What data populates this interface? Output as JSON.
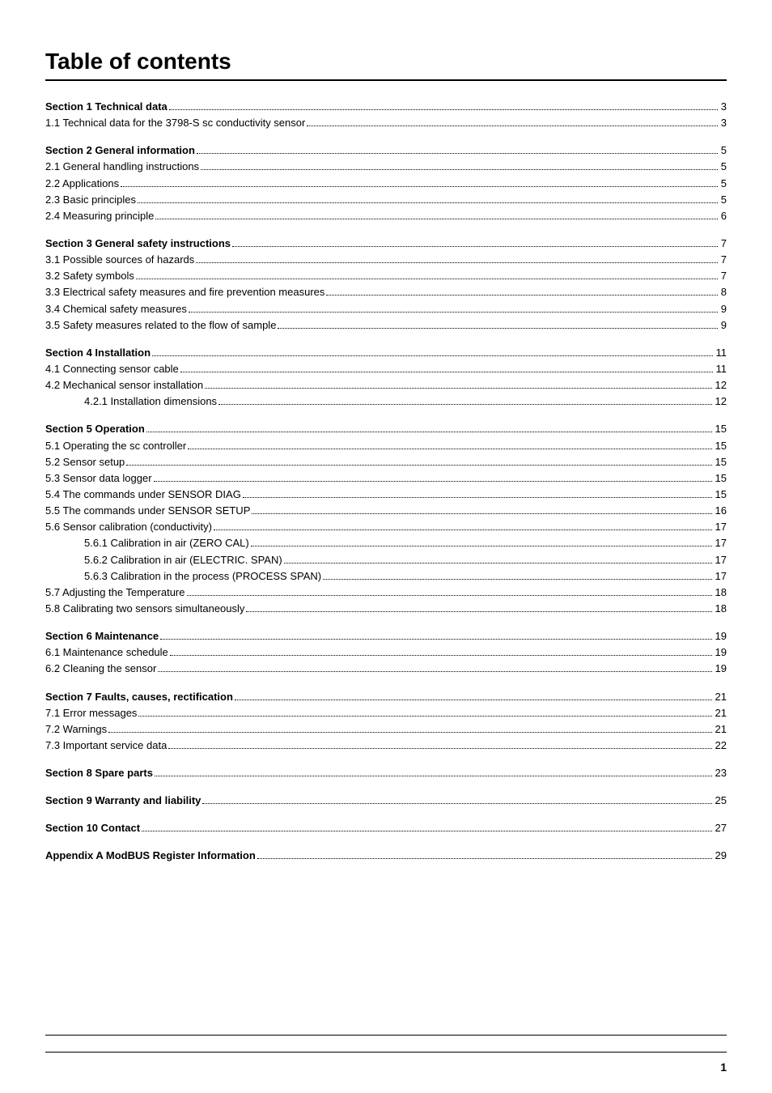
{
  "title": "Table of contents",
  "page_number": "1",
  "entries": [
    {
      "label": "Section 1 Technical data",
      "page": "3",
      "bold": true,
      "section": true,
      "indent": 0,
      "first": true
    },
    {
      "label": "1.1 Technical data for the 3798-S sc conductivity sensor ",
      "page": "3",
      "bold": false,
      "section": false,
      "indent": 0
    },
    {
      "label": "Section 2 General information ",
      "page": "5",
      "bold": true,
      "section": true,
      "indent": 0
    },
    {
      "label": "2.1 General handling instructions ",
      "page": "5",
      "bold": false,
      "section": false,
      "indent": 0
    },
    {
      "label": "2.2 Applications ",
      "page": "5",
      "bold": false,
      "section": false,
      "indent": 0
    },
    {
      "label": "2.3 Basic principles",
      "page": "5",
      "bold": false,
      "section": false,
      "indent": 0
    },
    {
      "label": "2.4 Measuring principle ",
      "page": "6",
      "bold": false,
      "section": false,
      "indent": 0
    },
    {
      "label": "Section 3 General safety instructions ",
      "page": "7",
      "bold": true,
      "section": true,
      "indent": 0
    },
    {
      "label": "3.1 Possible sources of hazards",
      "page": "7",
      "bold": false,
      "section": false,
      "indent": 0
    },
    {
      "label": "3.2 Safety symbols ",
      "page": "7",
      "bold": false,
      "section": false,
      "indent": 0
    },
    {
      "label": "3.3 Electrical safety measures and fire prevention measures ",
      "page": "8",
      "bold": false,
      "section": false,
      "indent": 0
    },
    {
      "label": "3.4 Chemical safety measures ",
      "page": "9",
      "bold": false,
      "section": false,
      "indent": 0
    },
    {
      "label": "3.5 Safety measures related to the flow of sample",
      "page": "9",
      "bold": false,
      "section": false,
      "indent": 0
    },
    {
      "label": "Section 4 Installation",
      "page": "11",
      "bold": true,
      "section": true,
      "indent": 0
    },
    {
      "label": "4.1 Connecting sensor cable ",
      "page": "11",
      "bold": false,
      "section": false,
      "indent": 0
    },
    {
      "label": "4.2 Mechanical sensor installation",
      "page": "12",
      "bold": false,
      "section": false,
      "indent": 0
    },
    {
      "label": "4.2.1 Installation dimensions ",
      "page": "12",
      "bold": false,
      "section": false,
      "indent": 2
    },
    {
      "label": "Section 5 Operation",
      "page": "15",
      "bold": true,
      "section": true,
      "indent": 0
    },
    {
      "label": "5.1 Operating the sc controller ",
      "page": "15",
      "bold": false,
      "section": false,
      "indent": 0
    },
    {
      "label": "5.2 Sensor setup ",
      "page": "15",
      "bold": false,
      "section": false,
      "indent": 0
    },
    {
      "label": "5.3 Sensor data logger ",
      "page": "15",
      "bold": false,
      "section": false,
      "indent": 0
    },
    {
      "label": "5.4 The commands under SENSOR DIAG",
      "page": "15",
      "bold": false,
      "section": false,
      "indent": 0
    },
    {
      "label": "5.5 The commands under SENSOR SETUP ",
      "page": "16",
      "bold": false,
      "section": false,
      "indent": 0
    },
    {
      "label": "5.6 Sensor calibration (conductivity) ",
      "page": "17",
      "bold": false,
      "section": false,
      "indent": 0
    },
    {
      "label": "5.6.1 Calibration in air (ZERO CAL)",
      "page": "17",
      "bold": false,
      "section": false,
      "indent": 2
    },
    {
      "label": "5.6.2 Calibration in air (ELECTRIC. SPAN) ",
      "page": "17",
      "bold": false,
      "section": false,
      "indent": 2
    },
    {
      "label": "5.6.3 Calibration in the process (PROCESS SPAN)",
      "page": "17",
      "bold": false,
      "section": false,
      "indent": 2
    },
    {
      "label": "5.7 Adjusting the Temperature ",
      "page": "18",
      "bold": false,
      "section": false,
      "indent": 0
    },
    {
      "label": "5.8 Calibrating two sensors simultaneously ",
      "page": "18",
      "bold": false,
      "section": false,
      "indent": 0
    },
    {
      "label": "Section 6 Maintenance",
      "page": "19",
      "bold": true,
      "section": true,
      "indent": 0
    },
    {
      "label": "6.1 Maintenance schedule",
      "page": "19",
      "bold": false,
      "section": false,
      "indent": 0
    },
    {
      "label": "6.2 Cleaning the sensor",
      "page": "19",
      "bold": false,
      "section": false,
      "indent": 0
    },
    {
      "label": "Section 7 Faults, causes, rectification ",
      "page": "21",
      "bold": true,
      "section": true,
      "indent": 0
    },
    {
      "label": "7.1 Error messages ",
      "page": "21",
      "bold": false,
      "section": false,
      "indent": 0
    },
    {
      "label": "7.2 Warnings ",
      "page": "21",
      "bold": false,
      "section": false,
      "indent": 0
    },
    {
      "label": "7.3 Important service data ",
      "page": "22",
      "bold": false,
      "section": false,
      "indent": 0
    },
    {
      "label": "Section 8 Spare parts ",
      "page": "23",
      "bold": true,
      "section": true,
      "indent": 0
    },
    {
      "label": "Section 9 Warranty and liability ",
      "page": "25",
      "bold": true,
      "section": true,
      "indent": 0
    },
    {
      "label": "Section 10 Contact ",
      "page": "27",
      "bold": true,
      "section": true,
      "indent": 0
    },
    {
      "label": "Appendix A ModBUS Register Information ",
      "page": "29",
      "bold": true,
      "section": true,
      "indent": 0
    }
  ]
}
